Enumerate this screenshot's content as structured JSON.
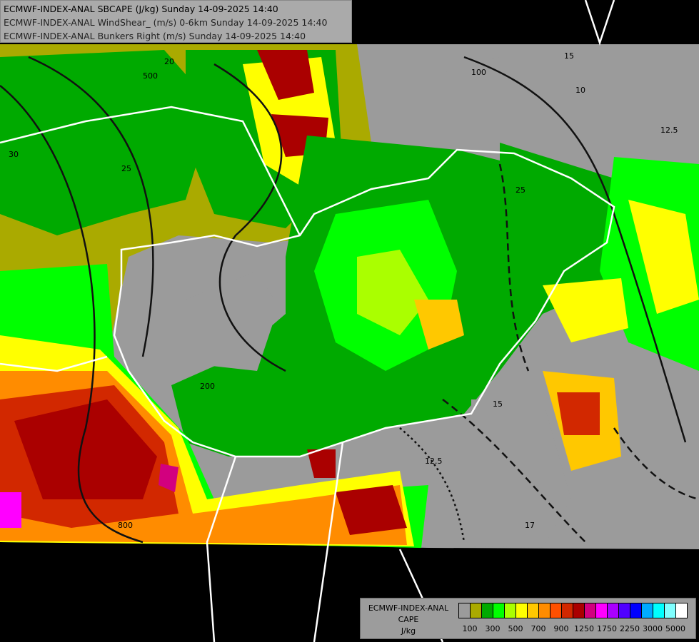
{
  "header": {
    "lines": [
      "ECMWF-INDEX-ANAL SBCAPE (J/kg) Sunday 14-09-2025 14:40",
      "ECMWF-INDEX-ANAL WindShear_ (m/s) 0-6km Sunday 14-09-2025 14:40",
      "ECMWF-INDEX-ANAL Bunkers Right (m/s) Sunday 14-09-2025 14:40"
    ]
  },
  "legend": {
    "title_lines": [
      "ECMWF-INDEX-ANAL",
      "CAPE",
      "J/kg"
    ],
    "colors": [
      "#9b9b9b",
      "#aaaa00",
      "#00aa00",
      "#00ff00",
      "#aaff00",
      "#ffff00",
      "#ffc800",
      "#ff8c00",
      "#ff5000",
      "#d22800",
      "#aa0000",
      "#d2007f",
      "#ff00ff",
      "#aa00ff",
      "#5000ff",
      "#0000ff",
      "#00aaff",
      "#00ffff",
      "#80ffff",
      "#ffffff"
    ],
    "tick_labels": [
      "100",
      "300",
      "500",
      "700",
      "900",
      "1250",
      "1750",
      "2250",
      "3000",
      "5000"
    ]
  },
  "map": {
    "contour_labels": [
      "15",
      "12.5",
      "10",
      "20",
      "25",
      "30",
      "500",
      "100",
      "200",
      "800",
      "15",
      "12.5",
      "17",
      "25"
    ]
  }
}
